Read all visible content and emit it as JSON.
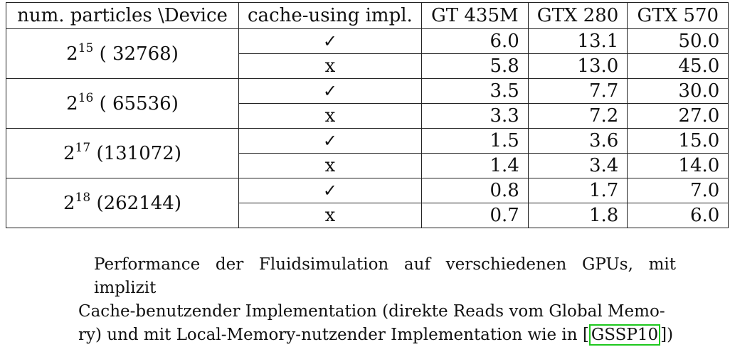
{
  "table": {
    "headers": [
      "num. particles \\Device",
      "cache-using impl.",
      "GT 435M",
      "GTX 280",
      "GTX 570"
    ],
    "groups": [
      {
        "base": "2",
        "exp": "15",
        "count": "( 32768)",
        "rows": [
          {
            "impl": "✓",
            "v1": "6.0",
            "v2": "13.1",
            "v3": "50.0"
          },
          {
            "impl": "x",
            "v1": "5.8",
            "v2": "13.0",
            "v3": "45.0"
          }
        ]
      },
      {
        "base": "2",
        "exp": "16",
        "count": "( 65536)",
        "rows": [
          {
            "impl": "✓",
            "v1": "3.5",
            "v2": "7.7",
            "v3": "30.0"
          },
          {
            "impl": "x",
            "v1": "3.3",
            "v2": "7.2",
            "v3": "27.0"
          }
        ]
      },
      {
        "base": "2",
        "exp": "17",
        "count": "(131072)",
        "rows": [
          {
            "impl": "✓",
            "v1": "1.5",
            "v2": "3.6",
            "v3": "15.0"
          },
          {
            "impl": "x",
            "v1": "1.4",
            "v2": "3.4",
            "v3": "14.0"
          }
        ]
      },
      {
        "base": "2",
        "exp": "18",
        "count": "(262144)",
        "rows": [
          {
            "impl": "✓",
            "v1": "0.8",
            "v2": "1.7",
            "v3": "7.0"
          },
          {
            "impl": "x",
            "v1": "0.7",
            "v2": "1.8",
            "v3": "6.0"
          }
        ]
      }
    ]
  },
  "caption": {
    "line1": "Performance der Fluidsimulation auf verschiedenen GPUs, mit implizit",
    "line2": "Cache-benutzender Implementation (direkte Reads vom Global Memo-",
    "line3_prefix": "ry) und mit Local-Memory-nutzender Implementation wie in [",
    "ref": "GSSP10",
    "line3_suffix": "])",
    "ref_box_color": "#1ec81e"
  }
}
